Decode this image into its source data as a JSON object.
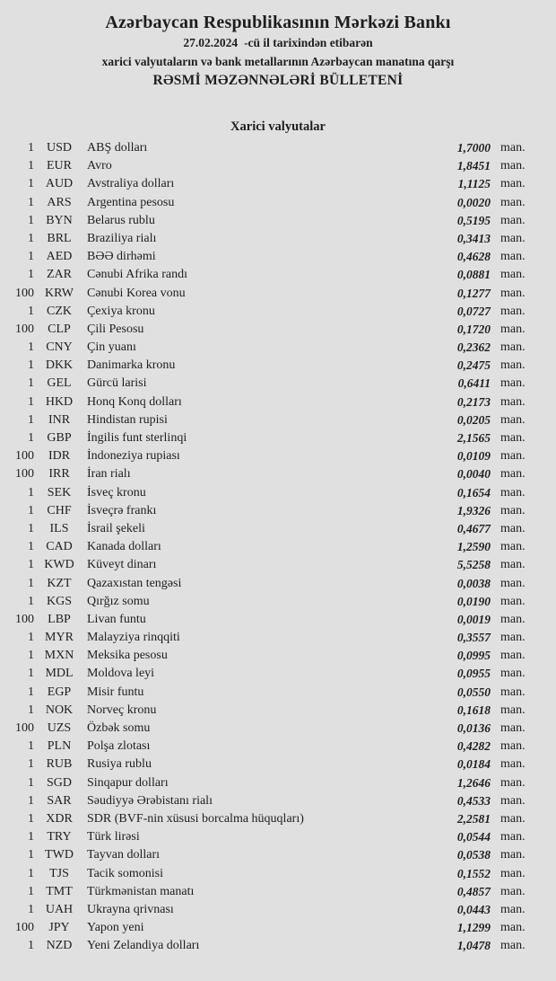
{
  "colors": {
    "background": "#e0e0e0",
    "text": "#1e1e1e"
  },
  "header": {
    "bank_name": "Azərbaycan Respublikasının Mərkəzi Bankı",
    "date": "27.02.2024",
    "date_suffix": "-cü il tarixindən etibarən",
    "subtitle": "xarici valyutaların və bank metallarının Azərbaycan manatına qarşı",
    "bulletin_title": "RƏSMİ MƏZƏNNƏLƏRİ BÜLLETENİ"
  },
  "section": {
    "title": "Xarici valyutalar"
  },
  "table": {
    "unit_label": "man.",
    "rows": [
      {
        "qty": "1",
        "code": "USD",
        "name": "ABŞ dolları",
        "rate": "1,7000"
      },
      {
        "qty": "1",
        "code": "EUR",
        "name": "Avro",
        "rate": "1,8451"
      },
      {
        "qty": "1",
        "code": "AUD",
        "name": "Avstraliya dolları",
        "rate": "1,1125"
      },
      {
        "qty": "1",
        "code": "ARS",
        "name": "Argentina pesosu",
        "rate": "0,0020"
      },
      {
        "qty": "1",
        "code": "BYN",
        "name": "Belarus rublu",
        "rate": "0,5195"
      },
      {
        "qty": "1",
        "code": "BRL",
        "name": "Braziliya rialı",
        "rate": "0,3413"
      },
      {
        "qty": "1",
        "code": "AED",
        "name": "BƏƏ dirhəmi",
        "rate": "0,4628"
      },
      {
        "qty": "1",
        "code": "ZAR",
        "name": "Cənubi Afrika randı",
        "rate": "0,0881"
      },
      {
        "qty": "100",
        "code": "KRW",
        "name": "Cənubi Korea vonu",
        "rate": "0,1277"
      },
      {
        "qty": "1",
        "code": "CZK",
        "name": "Çexiya kronu",
        "rate": "0,0727"
      },
      {
        "qty": "100",
        "code": "CLP",
        "name": "Çili Pesosu",
        "rate": "0,1720"
      },
      {
        "qty": "1",
        "code": "CNY",
        "name": "Çin yuanı",
        "rate": "0,2362"
      },
      {
        "qty": "1",
        "code": "DKK",
        "name": "Danimarka kronu",
        "rate": "0,2475"
      },
      {
        "qty": "1",
        "code": "GEL",
        "name": "Gürcü larisi",
        "rate": "0,6411"
      },
      {
        "qty": "1",
        "code": "HKD",
        "name": "Honq Konq dolları",
        "rate": "0,2173"
      },
      {
        "qty": "1",
        "code": "INR",
        "name": "Hindistan rupisi",
        "rate": "0,0205"
      },
      {
        "qty": "1",
        "code": "GBP",
        "name": "İngilis funt sterlinqi",
        "rate": "2,1565"
      },
      {
        "qty": "100",
        "code": "IDR",
        "name": "İndoneziya rupiası",
        "rate": "0,0109"
      },
      {
        "qty": "100",
        "code": "IRR",
        "name": "İran rialı",
        "rate": "0,0040"
      },
      {
        "qty": "1",
        "code": "SEK",
        "name": "İsveç kronu",
        "rate": "0,1654"
      },
      {
        "qty": "1",
        "code": "CHF",
        "name": "İsveçrə frankı",
        "rate": "1,9326"
      },
      {
        "qty": "1",
        "code": "ILS",
        "name": "İsrail şekeli",
        "rate": "0,4677"
      },
      {
        "qty": "1",
        "code": "CAD",
        "name": "Kanada dolları",
        "rate": "1,2590"
      },
      {
        "qty": "1",
        "code": "KWD",
        "name": "Küveyt dinarı",
        "rate": "5,5258"
      },
      {
        "qty": "1",
        "code": "KZT",
        "name": "Qazaxıstan tengəsi",
        "rate": "0,0038"
      },
      {
        "qty": "1",
        "code": "KGS",
        "name": "Qırğız somu",
        "rate": "0,0190"
      },
      {
        "qty": "100",
        "code": "LBP",
        "name": "Livan funtu",
        "rate": "0,0019"
      },
      {
        "qty": "1",
        "code": "MYR",
        "name": "Malayziya rinqqiti",
        "rate": "0,3557"
      },
      {
        "qty": "1",
        "code": "MXN",
        "name": "Meksika pesosu",
        "rate": "0,0995"
      },
      {
        "qty": "1",
        "code": "MDL",
        "name": "Moldova leyi",
        "rate": "0,0955"
      },
      {
        "qty": "1",
        "code": "EGP",
        "name": "Misir funtu",
        "rate": "0,0550"
      },
      {
        "qty": "1",
        "code": "NOK",
        "name": "Norveç kronu",
        "rate": "0,1618"
      },
      {
        "qty": "100",
        "code": "UZS",
        "name": "Özbək somu",
        "rate": "0,0136"
      },
      {
        "qty": "1",
        "code": "PLN",
        "name": "Polşa zlotası",
        "rate": "0,4282"
      },
      {
        "qty": "1",
        "code": "RUB",
        "name": "Rusiya rublu",
        "rate": "0,0184"
      },
      {
        "qty": "1",
        "code": "SGD",
        "name": "Sinqapur dolları",
        "rate": "1,2646"
      },
      {
        "qty": "1",
        "code": "SAR",
        "name": "Səudiyyə Ərəbistanı rialı",
        "rate": "0,4533"
      },
      {
        "qty": "1",
        "code": "XDR",
        "name": "SDR (BVF-nin xüsusi borcalma hüquqları)",
        "rate": "2,2581"
      },
      {
        "qty": "1",
        "code": "TRY",
        "name": "Türk lirəsi",
        "rate": "0,0544"
      },
      {
        "qty": "1",
        "code": "TWD",
        "name": "Tayvan dolları",
        "rate": "0,0538"
      },
      {
        "qty": "1",
        "code": "TJS",
        "name": "Tacik somonisi",
        "rate": "0,1552"
      },
      {
        "qty": "1",
        "code": "TMT",
        "name": "Türkmənistan manatı",
        "rate": "0,4857"
      },
      {
        "qty": "1",
        "code": "UAH",
        "name": "Ukrayna qrivnası",
        "rate": "0,0443"
      },
      {
        "qty": "100",
        "code": "JPY",
        "name": "Yapon yeni",
        "rate": "1,1299"
      },
      {
        "qty": "1",
        "code": "NZD",
        "name": "Yeni Zelandiya dolları",
        "rate": "1,0478"
      }
    ]
  }
}
